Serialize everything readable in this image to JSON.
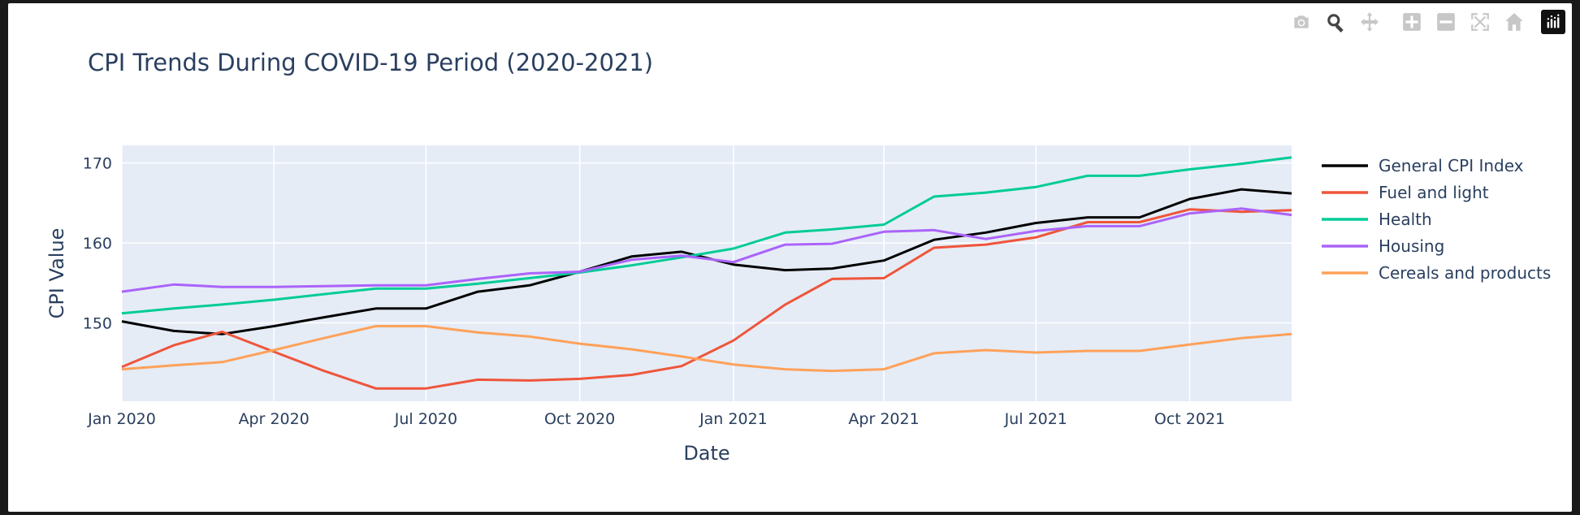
{
  "modebar": {
    "buttons": [
      {
        "name": "camera-icon",
        "title": "Download plot as a png"
      },
      {
        "name": "zoom-icon",
        "title": "Zoom"
      },
      {
        "name": "pan-icon",
        "title": "Pan"
      },
      {
        "name": "zoom-in-icon",
        "title": "Zoom in"
      },
      {
        "name": "zoom-out-icon",
        "title": "Zoom out"
      },
      {
        "name": "autoscale-icon",
        "title": "Autoscale"
      },
      {
        "name": "home-icon",
        "title": "Reset axes"
      }
    ],
    "active": "zoom-icon"
  },
  "chart_data": {
    "type": "line",
    "title": "CPI Trends During COVID-19 Period (2020-2021)",
    "xlabel": "Date",
    "ylabel": "CPI Value",
    "x": [
      "2020-01-01",
      "2020-02-01",
      "2020-03-01",
      "2020-04-01",
      "2020-05-01",
      "2020-06-01",
      "2020-07-01",
      "2020-08-01",
      "2020-09-01",
      "2020-10-01",
      "2020-11-01",
      "2020-12-01",
      "2021-01-01",
      "2021-02-01",
      "2021-03-01",
      "2021-04-01",
      "2021-05-01",
      "2021-06-01",
      "2021-07-01",
      "2021-08-01",
      "2021-09-01",
      "2021-10-01",
      "2021-11-01",
      "2021-12-01"
    ],
    "x_tick_labels": [
      "Jan 2020",
      "Apr 2020",
      "Jul 2020",
      "Oct 2020",
      "Jan 2021",
      "Apr 2021",
      "Jul 2021",
      "Oct 2021"
    ],
    "x_tick_dates": [
      "2020-01-01",
      "2020-04-01",
      "2020-07-01",
      "2020-10-01",
      "2021-01-01",
      "2021-04-01",
      "2021-07-01",
      "2021-10-01"
    ],
    "y_ticks": [
      150,
      160,
      170
    ],
    "ylim": [
      140.2,
      172.2
    ],
    "xlim": [
      "2020-01-01",
      "2021-12-01"
    ],
    "grid": true,
    "legend_position": "right",
    "series": [
      {
        "name": "General CPI Index",
        "color": "#000000",
        "values": [
          150.2,
          149.0,
          148.6,
          149.6,
          150.7,
          151.8,
          151.8,
          153.9,
          154.7,
          156.4,
          158.3,
          158.9,
          157.3,
          156.6,
          156.8,
          157.8,
          160.4,
          161.3,
          162.5,
          163.2,
          163.2,
          165.5,
          166.7,
          166.2
        ]
      },
      {
        "name": "Fuel and light",
        "color": "#EF553B",
        "values": [
          144.5,
          147.2,
          148.9,
          146.4,
          144.0,
          141.8,
          141.8,
          142.9,
          142.8,
          143.0,
          143.5,
          144.6,
          147.8,
          152.3,
          155.5,
          155.6,
          159.4,
          159.8,
          160.7,
          162.6,
          162.6,
          164.2,
          163.9,
          164.1
        ]
      },
      {
        "name": "Health",
        "color": "#00CC96",
        "values": [
          151.2,
          151.8,
          152.3,
          152.9,
          153.6,
          154.3,
          154.3,
          154.9,
          155.6,
          156.3,
          157.2,
          158.2,
          159.3,
          161.3,
          161.7,
          162.3,
          165.8,
          166.3,
          167.0,
          168.4,
          168.4,
          169.2,
          169.9,
          170.7
        ]
      },
      {
        "name": "Housing",
        "color": "#AB63FA",
        "values": [
          153.9,
          154.8,
          154.5,
          154.5,
          154.6,
          154.7,
          154.7,
          155.5,
          156.2,
          156.4,
          157.9,
          158.4,
          157.6,
          159.8,
          159.9,
          161.4,
          161.6,
          160.5,
          161.5,
          162.1,
          162.1,
          163.7,
          164.3,
          163.5
        ]
      },
      {
        "name": "Cereals and products",
        "color": "#FFA15A",
        "values": [
          144.2,
          144.7,
          145.1,
          146.6,
          148.1,
          149.6,
          149.6,
          148.8,
          148.3,
          147.4,
          146.7,
          145.8,
          144.8,
          144.2,
          144.0,
          144.2,
          146.2,
          146.6,
          146.3,
          146.5,
          146.5,
          147.3,
          148.1,
          148.6
        ]
      }
    ]
  }
}
